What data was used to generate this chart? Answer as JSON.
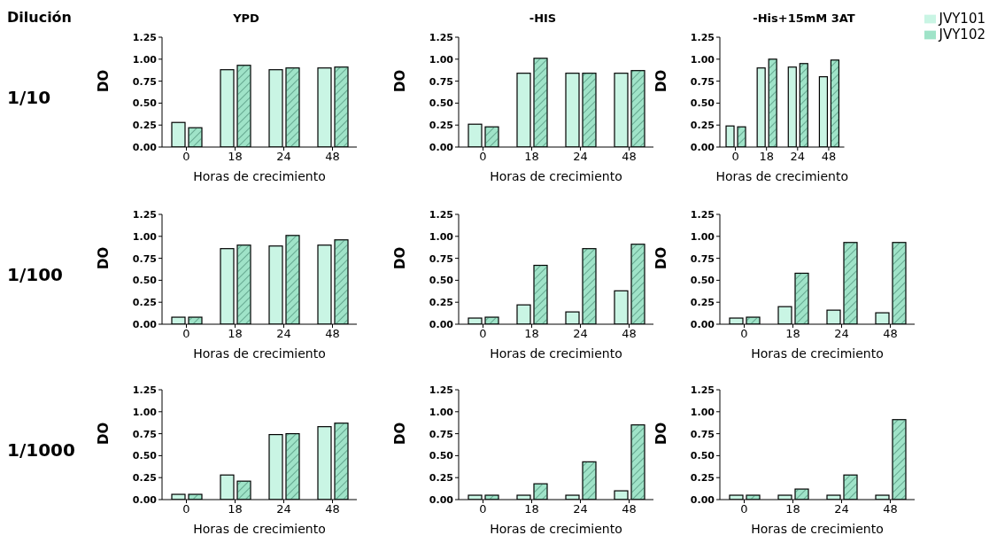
{
  "chart_data": [
    {
      "type": "bar",
      "title": "YPD",
      "annotations": [
        "Dilución",
        "1/10"
      ],
      "xlabel": "Horas de crecimiento",
      "ylabel": "DO",
      "categories": [
        "0",
        "18",
        "24",
        "48"
      ],
      "ylim": [
        0,
        1.25
      ],
      "yticks": [
        {
          "value": 0,
          "label": "0.00"
        },
        {
          "value": 0.25,
          "label": "0.25"
        },
        {
          "value": 0.5,
          "label": "0.50"
        },
        {
          "value": 0.75,
          "label": "0.75"
        },
        {
          "value": 1,
          "label": "1.00"
        },
        {
          "value": 1.25,
          "label": "1.25"
        }
      ],
      "grid": false,
      "legend": false,
      "series": [
        {
          "color": "#c9f5e4",
          "values": [
            0.28,
            0.88,
            0.88,
            0.9
          ]
        },
        {
          "color": "#9fe3c8",
          "values": [
            0.22,
            0.93,
            0.9,
            0.91
          ]
        }
      ]
    },
    {
      "type": "bar",
      "title": "-HIS",
      "xlabel": "Horas de crecimiento",
      "ylabel": "DO",
      "categories": [
        "0",
        "18",
        "24",
        "48"
      ],
      "ylim": [
        0,
        1.25
      ],
      "yticks": [
        {
          "value": 0,
          "label": "0.00"
        },
        {
          "value": 0.25,
          "label": "0.25"
        },
        {
          "value": 0.5,
          "label": "0.50"
        },
        {
          "value": 0.75,
          "label": "0.75"
        },
        {
          "value": 1,
          "label": "1.00"
        },
        {
          "value": 1.25,
          "label": "1.25"
        }
      ],
      "grid": false,
      "legend": false,
      "series": [
        {
          "color": "#c9f5e4",
          "values": [
            0.26,
            0.84,
            0.84,
            0.84
          ]
        },
        {
          "color": "#9fe3c8",
          "values": [
            0.23,
            1.01,
            0.84,
            0.87
          ]
        }
      ]
    },
    {
      "type": "bar",
      "title": "-His+15mM 3AT",
      "xlabel": "Horas de crecimiento",
      "ylabel": "DO",
      "categories": [
        "0",
        "18",
        "24",
        "48"
      ],
      "ylim": [
        0,
        1.25
      ],
      "yticks": [
        {
          "value": 0,
          "label": "0.00"
        },
        {
          "value": 0.25,
          "label": "0.25"
        },
        {
          "value": 0.5,
          "label": "0.50"
        },
        {
          "value": 0.75,
          "label": "0.75"
        },
        {
          "value": 1,
          "label": "1.00"
        },
        {
          "value": 1.25,
          "label": "1.25"
        }
      ],
      "grid": false,
      "legend": "top right",
      "series": [
        {
          "name": "JVY101",
          "color": "#c9f5e4",
          "values": [
            0.24,
            0.9,
            0.91,
            0.8
          ]
        },
        {
          "name": "JVY102",
          "color": "#9fe3c8",
          "values": [
            0.23,
            1.0,
            0.95,
            0.99
          ]
        }
      ]
    },
    {
      "type": "bar",
      "annotations": [
        "1/100"
      ],
      "xlabel": "Horas de crecimiento",
      "ylabel": "DO",
      "categories": [
        "0",
        "18",
        "24",
        "48"
      ],
      "ylim": [
        0,
        1.25
      ],
      "yticks": [
        {
          "value": 0,
          "label": "0.00"
        },
        {
          "value": 0.25,
          "label": "0.25"
        },
        {
          "value": 0.5,
          "label": "0.50"
        },
        {
          "value": 0.75,
          "label": "0.75"
        },
        {
          "value": 1,
          "label": "1.00"
        },
        {
          "value": 1.25,
          "label": "1.25"
        }
      ],
      "grid": false,
      "legend": false,
      "series": [
        {
          "color": "#c9f5e4",
          "values": [
            0.08,
            0.86,
            0.89,
            0.9
          ]
        },
        {
          "color": "#9fe3c8",
          "values": [
            0.08,
            0.9,
            1.01,
            0.96
          ]
        }
      ]
    },
    {
      "type": "bar",
      "xlabel": "Horas de crecimiento",
      "ylabel": "DO",
      "categories": [
        "0",
        "18",
        "24",
        "48"
      ],
      "ylim": [
        0,
        1.25
      ],
      "yticks": [
        {
          "value": 0,
          "label": "0.00"
        },
        {
          "value": 0.25,
          "label": "0.25"
        },
        {
          "value": 0.5,
          "label": "0.50"
        },
        {
          "value": 0.75,
          "label": "0.75"
        },
        {
          "value": 1,
          "label": "1.00"
        },
        {
          "value": 1.25,
          "label": "1.25"
        }
      ],
      "grid": false,
      "legend": false,
      "series": [
        {
          "color": "#c9f5e4",
          "values": [
            0.07,
            0.22,
            0.14,
            0.38
          ]
        },
        {
          "color": "#9fe3c8",
          "values": [
            0.08,
            0.67,
            0.86,
            0.91
          ]
        }
      ]
    },
    {
      "type": "bar",
      "xlabel": "Horas de crecimiento",
      "ylabel": "DO",
      "categories": [
        "0",
        "18",
        "24",
        "48"
      ],
      "ylim": [
        0,
        1.25
      ],
      "yticks": [
        {
          "value": 0,
          "label": "0.00"
        },
        {
          "value": 0.25,
          "label": "0.25"
        },
        {
          "value": 0.5,
          "label": "0.50"
        },
        {
          "value": 0.75,
          "label": "0.75"
        },
        {
          "value": 1,
          "label": "1.00"
        },
        {
          "value": 1.25,
          "label": "1.25"
        }
      ],
      "grid": false,
      "legend": false,
      "series": [
        {
          "color": "#c9f5e4",
          "values": [
            0.07,
            0.2,
            0.16,
            0.13
          ]
        },
        {
          "color": "#9fe3c8",
          "values": [
            0.08,
            0.58,
            0.93,
            0.93
          ]
        }
      ]
    },
    {
      "type": "bar",
      "annotations": [
        "1/1000"
      ],
      "xlabel": "Horas de crecimiento",
      "ylabel": "DO",
      "categories": [
        "0",
        "18",
        "24",
        "48"
      ],
      "ylim": [
        0,
        1.25
      ],
      "yticks": [
        {
          "value": 0,
          "label": "0.00"
        },
        {
          "value": 0.25,
          "label": "0.25"
        },
        {
          "value": 0.5,
          "label": "0.50"
        },
        {
          "value": 0.75,
          "label": "0.75"
        },
        {
          "value": 1,
          "label": "1.00"
        },
        {
          "value": 1.25,
          "label": "1.25"
        }
      ],
      "grid": false,
      "legend": false,
      "series": [
        {
          "color": "#c9f5e4",
          "values": [
            0.06,
            0.28,
            0.74,
            0.83
          ]
        },
        {
          "color": "#9fe3c8",
          "values": [
            0.06,
            0.21,
            0.75,
            0.87
          ]
        }
      ]
    },
    {
      "type": "bar",
      "xlabel": "Horas de crecimiento",
      "ylabel": "DO",
      "categories": [
        "0",
        "18",
        "24",
        "48"
      ],
      "ylim": [
        0,
        1.25
      ],
      "yticks": [
        {
          "value": 0,
          "label": "0.00"
        },
        {
          "value": 0.25,
          "label": "0.25"
        },
        {
          "value": 0.5,
          "label": "0.50"
        },
        {
          "value": 0.75,
          "label": "0.75"
        },
        {
          "value": 1,
          "label": "1.00"
        },
        {
          "value": 1.25,
          "label": "1.25"
        }
      ],
      "grid": false,
      "legend": false,
      "series": [
        {
          "color": "#c9f5e4",
          "values": [
            0.05,
            0.05,
            0.05,
            0.1
          ]
        },
        {
          "color": "#9fe3c8",
          "values": [
            0.05,
            0.18,
            0.43,
            0.85
          ]
        }
      ]
    },
    {
      "type": "bar",
      "xlabel": "Horas de crecimiento",
      "ylabel": "DO",
      "categories": [
        "0",
        "18",
        "24",
        "48"
      ],
      "ylim": [
        0,
        1.25
      ],
      "yticks": [
        {
          "value": 0,
          "label": "0.00"
        },
        {
          "value": 0.25,
          "label": "0.25"
        },
        {
          "value": 0.5,
          "label": "0.50"
        },
        {
          "value": 0.75,
          "label": "0.75"
        },
        {
          "value": 1,
          "label": "1.00"
        },
        {
          "value": 1.25,
          "label": "1.25"
        }
      ],
      "grid": false,
      "legend": false,
      "series": [
        {
          "color": "#c9f5e4",
          "values": [
            0.05,
            0.05,
            0.05,
            0.05
          ]
        },
        {
          "color": "#9fe3c8",
          "values": [
            0.05,
            0.12,
            0.28,
            0.91
          ]
        }
      ]
    }
  ]
}
